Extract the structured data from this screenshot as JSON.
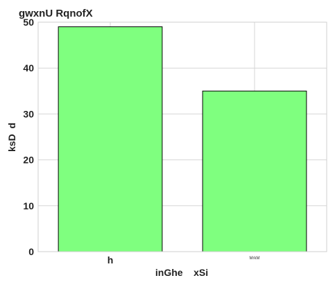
{
  "chart_data": {
    "type": "bar",
    "title": "gwxnU RqnofX",
    "xlabel": "inGhe    xSi",
    "ylabel": "ksD  d",
    "categories": [
      "h",
      "MrkM"
    ],
    "values": [
      49,
      35
    ],
    "ylim": [
      0,
      50
    ],
    "yticks": [
      0,
      10,
      20,
      30,
      40,
      50
    ],
    "grid": true,
    "legend": "none",
    "bar_color": "#7fff7f"
  }
}
